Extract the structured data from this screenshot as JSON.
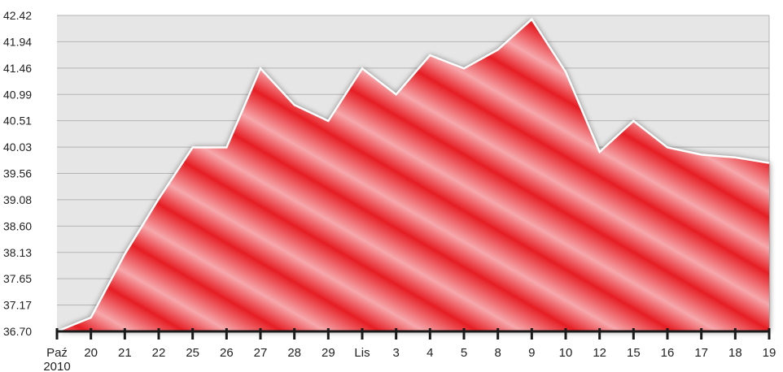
{
  "chart_data": {
    "type": "area",
    "title": "",
    "xlabel": "",
    "ylabel": "",
    "x": [
      "Paź",
      "20",
      "21",
      "22",
      "25",
      "26",
      "27",
      "28",
      "29",
      "Lis",
      "3",
      "4",
      "5",
      "8",
      "9",
      "10",
      "12",
      "15",
      "16",
      "17",
      "18",
      "19"
    ],
    "x_sublabels": {
      "0": "2010"
    },
    "y_ticks": [
      "36.70",
      "37.17",
      "37.65",
      "38.13",
      "38.60",
      "39.08",
      "39.56",
      "40.03",
      "40.51",
      "40.99",
      "41.46",
      "41.94",
      "42.42"
    ],
    "ylim": [
      36.7,
      42.42
    ],
    "series": [
      {
        "name": "",
        "values": [
          36.7,
          36.95,
          38.1,
          39.1,
          40.03,
          40.03,
          41.46,
          40.8,
          40.51,
          41.46,
          40.99,
          41.7,
          41.46,
          41.8,
          42.35,
          41.4,
          39.95,
          40.51,
          40.03,
          39.9,
          39.85,
          39.75
        ]
      }
    ],
    "grid": true,
    "legend": "none",
    "colors": {
      "fill_dark": "#e61e24",
      "fill_light": "#f6a8ac",
      "line": "#ffffff",
      "plot_background": "#e6e6e6",
      "grid": "#b3b3b3",
      "axis": "#1a1a1a"
    }
  }
}
